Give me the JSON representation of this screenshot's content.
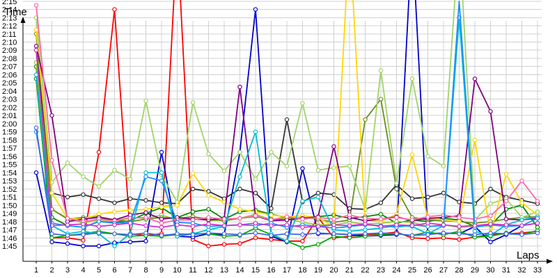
{
  "chart_data": {
    "type": "line",
    "xlabel": "Laps",
    "ylabel": "Time",
    "xlim": [
      1,
      33
    ],
    "ylim": [
      104,
      137
    ],
    "grid": true,
    "x": [
      1,
      2,
      3,
      4,
      5,
      6,
      7,
      8,
      9,
      10,
      11,
      12,
      13,
      14,
      15,
      16,
      17,
      18,
      19,
      20,
      21,
      22,
      23,
      24,
      25,
      26,
      27,
      28,
      29,
      30,
      31,
      32,
      33
    ],
    "x_ticks": [
      "1",
      "2",
      "3",
      "4",
      "5",
      "6",
      "7",
      "8",
      "9",
      "10",
      "11",
      "12",
      "13",
      "14",
      "15",
      "16",
      "17",
      "18",
      "19",
      "20",
      "21",
      "22",
      "23",
      "24",
      "25",
      "26",
      "27",
      "28",
      "29",
      "30",
      "31",
      "32",
      "33"
    ],
    "y_ticks": [
      {
        "v": 105,
        "label": "1:45"
      },
      {
        "v": 106,
        "label": "1:46"
      },
      {
        "v": 107,
        "label": "1:47"
      },
      {
        "v": 108,
        "label": "1:48"
      },
      {
        "v": 109,
        "label": "1:49"
      },
      {
        "v": 110,
        "label": "1:50"
      },
      {
        "v": 111,
        "label": "1:51"
      },
      {
        "v": 112,
        "label": "1:52"
      },
      {
        "v": 113,
        "label": "1:53"
      },
      {
        "v": 114,
        "label": "1:54"
      },
      {
        "v": 115,
        "label": "1:55"
      },
      {
        "v": 116,
        "label": "1:56"
      },
      {
        "v": 117,
        "label": "1:57"
      },
      {
        "v": 118,
        "label": "1:58"
      },
      {
        "v": 119,
        "label": "1:59"
      },
      {
        "v": 120,
        "label": "2:00"
      },
      {
        "v": 121,
        "label": "2:01"
      },
      {
        "v": 122,
        "label": "2:02"
      },
      {
        "v": 123,
        "label": "2:03"
      },
      {
        "v": 124,
        "label": "2:04"
      },
      {
        "v": 125,
        "label": "2:05"
      },
      {
        "v": 126,
        "label": "2:06"
      },
      {
        "v": 127,
        "label": "2:07"
      },
      {
        "v": 128,
        "label": "2:08"
      },
      {
        "v": 129,
        "label": "2:09"
      },
      {
        "v": 130,
        "label": "2:10"
      },
      {
        "v": 131,
        "label": "2:11"
      },
      {
        "v": 132,
        "label": "2:12"
      },
      {
        "v": 133,
        "label": "2:13"
      },
      {
        "v": 134,
        "label": "2:14"
      },
      {
        "v": 135,
        "label": "2:15"
      }
    ],
    "series": [
      {
        "color": "#ff0000",
        "values": [
          125.5,
          106,
          106,
          105.7,
          116.5,
          134,
          106.5,
          106.3,
          106.5,
          143,
          105.8,
          105,
          105.2,
          105.3,
          106,
          105.8,
          105.6,
          105.6,
          108.5,
          106,
          106.2,
          106.4,
          106.5,
          106.7,
          106,
          105.9,
          106,
          105.8,
          106.1,
          106.4,
          106.5,
          106.6,
          106.8
        ]
      },
      {
        "color": "#0000cc",
        "values": [
          114,
          105.5,
          105.3,
          105,
          105,
          105.4,
          105.5,
          105.6,
          116.5,
          106.2,
          106.1,
          106.5,
          106.4,
          116.5,
          134,
          106.2,
          105.5,
          114.5,
          106.5,
          106.5,
          106.4,
          106.2,
          106.3,
          106.4,
          143,
          106.5,
          106.6,
          106.5,
          107.4,
          105.5,
          106.4,
          107.5,
          107.8
        ]
      },
      {
        "color": "#00aa00",
        "values": [
          125.5,
          106,
          106.3,
          106.5,
          106.8,
          106.5,
          106.2,
          106.3,
          106.2,
          106.4,
          106.5,
          106.5,
          106.2,
          106.3,
          107.2,
          106.4,
          105.6,
          104.8,
          105.2,
          106.2,
          106,
          106.2,
          106.4,
          106.5,
          106.3,
          106.7,
          106.4,
          106.8,
          106.1,
          106.2,
          106.6,
          106.4,
          106.9
        ]
      },
      {
        "color": "#008800",
        "values": [
          127,
          108.5,
          107.5,
          107.3,
          108,
          107.9,
          108.1,
          109,
          109.7,
          108.5,
          109.2,
          109.5,
          108.3,
          109.2,
          109.4,
          108.9,
          108.5,
          108.4,
          108.6,
          108.8,
          108.4,
          108.6,
          108.9,
          107.8,
          108.2,
          108,
          108.4,
          108.2,
          107.4,
          107.5,
          109.5,
          110,
          107.3
        ]
      },
      {
        "color": "#9acd32",
        "values": [
          127.5,
          109.5,
          108.4,
          107.8,
          108.2,
          108.1,
          108.5,
          108.4,
          108.8,
          108.2,
          108.6,
          108.1,
          108.2,
          108.4,
          108.9,
          108.2,
          108.4,
          107.9,
          107.6,
          107.6,
          107.9,
          107.7,
          107.8,
          108,
          107.9,
          107.4,
          107.6,
          107.3,
          107.4,
          107.5,
          107.6,
          107.5,
          107.8
        ]
      },
      {
        "color": "#6b8e23",
        "values": [
          131,
          109.5,
          108.3,
          108.5,
          108.6,
          108.2,
          108,
          108.3,
          108.5,
          108.4,
          108.6,
          108.3,
          108.1,
          108.4,
          108.6,
          108.3,
          108.2,
          108.5,
          108.3,
          107.9,
          108.2,
          120.5,
          123,
          112,
          108.5,
          108.2,
          108.1,
          108,
          107.8,
          108,
          108.3,
          108.5,
          108.6
        ]
      },
      {
        "color": "#333333",
        "values": [
          129,
          111.5,
          111,
          111.3,
          110.8,
          110.3,
          110.8,
          110.6,
          110.3,
          110.2,
          112,
          111.7,
          110.8,
          112,
          111.5,
          109.6,
          120.5,
          110.4,
          111.5,
          111.3,
          109.6,
          109.5,
          110.3,
          112.5,
          110.8,
          111,
          111.5,
          110.4,
          110.2,
          112,
          111,
          110.6,
          110.2
        ]
      },
      {
        "color": "#a0d468",
        "values": [
          133,
          112.8,
          115.2,
          113.5,
          112.3,
          114.3,
          113.2,
          122.8,
          113.7,
          110.4,
          122.6,
          116.3,
          114.2,
          116.5,
          113.2,
          116.5,
          114.8,
          122.5,
          114.3,
          114.6,
          114.8,
          109.5,
          126.5,
          112.7,
          125.5,
          116,
          114.8,
          143,
          108.2,
          110.2,
          110.8,
          108.5,
          109.2
        ]
      },
      {
        "color": "#ffd700",
        "values": [
          131.5,
          111.5,
          108.4,
          108.3,
          108.9,
          109.2,
          109.4,
          109.5,
          109.8,
          110,
          113.9,
          111.2,
          110.4,
          109.5,
          109.2,
          108.8,
          108.6,
          108.7,
          108.5,
          107.4,
          143,
          108.2,
          108,
          108.9,
          116.2,
          108.4,
          108.2,
          108,
          118,
          106.5,
          113.8,
          110.3,
          108.8
        ]
      },
      {
        "color": "#800080",
        "values": [
          129.5,
          121,
          108,
          108.3,
          108.5,
          108.2,
          108.8,
          109.1,
          108.3,
          108.5,
          108.3,
          108.2,
          108.4,
          124.5,
          108.7,
          108.1,
          108.2,
          108.4,
          108.6,
          117.2,
          108.5,
          108.1,
          108.3,
          108.6,
          108.1,
          108.4,
          108.5,
          108.7,
          125.5,
          121.5,
          108.3,
          108.2,
          108.4
        ]
      },
      {
        "color": "#ff66aa",
        "values": [
          134.5,
          115.5,
          108.4,
          108,
          108.3,
          108.1,
          108.4,
          108.5,
          107.8,
          108.2,
          108.2,
          108.5,
          108.3,
          108.4,
          108.7,
          108.2,
          108.6,
          108.3,
          108.5,
          108.3,
          108.8,
          108.4,
          108.3,
          108.5,
          108.2,
          108.6,
          108.8,
          108.5,
          108.3,
          108.7,
          110.5,
          113,
          110.5
        ]
      },
      {
        "color": "#00bcd4",
        "values": [
          126,
          107.5,
          106.5,
          106.8,
          106.5,
          105,
          106.5,
          114,
          114,
          106.2,
          106.5,
          107,
          107.4,
          113.5,
          119,
          106.5,
          105.6,
          110.5,
          111,
          107,
          106.8,
          107,
          107.2,
          107.5,
          107.4,
          106.5,
          107.5,
          133,
          106.8,
          106.3,
          107.6,
          108.2,
          108.6
        ]
      },
      {
        "color": "#1e90ff",
        "values": [
          119,
          107.8,
          107.5,
          107.3,
          108,
          107.8,
          107.9,
          113.5,
          113,
          107.9,
          107.8,
          107.4,
          107.5,
          107.6,
          107.5,
          107.8,
          107.3,
          107.6,
          107.4,
          107.2,
          107.4,
          107.6,
          107.5,
          107.3,
          107.6,
          107.4,
          107.5,
          135,
          107.3,
          107.6,
          107.4,
          107.5,
          108.4
        ]
      },
      {
        "color": "#cc33cc",
        "values": [
          129,
          107.5,
          107.6,
          107.7,
          107.4,
          107.6,
          107.8,
          107.5,
          107.3,
          107.6,
          107.4,
          107.7,
          107.5,
          107.6,
          107.8,
          107.5,
          107.6,
          107.3,
          107.4,
          107.6,
          107.5,
          107.7,
          107.4,
          107.6,
          107.5,
          107.8,
          107.6,
          107.4,
          107.5,
          107.7,
          107.6,
          107.5,
          107.8
        ]
      },
      {
        "color": "#4169e1",
        "values": [
          119.5,
          106.5,
          106.3,
          106.4,
          106.6,
          106.5,
          106.4,
          106.6,
          106.3,
          106.5,
          106.4,
          106.6,
          106.5,
          106.4,
          106.6,
          106.3,
          106.5,
          106.4,
          106.6,
          106.5,
          106.4,
          106.5,
          106.6,
          106.5,
          106.3,
          106.4,
          106.6,
          106.5,
          106.4,
          106.6,
          106.5,
          106.4,
          106.6
        ]
      }
    ]
  }
}
